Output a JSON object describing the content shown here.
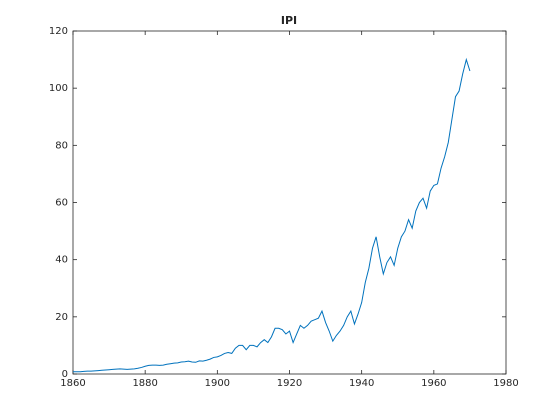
{
  "chart_data": {
    "type": "line",
    "title": "IPI",
    "x": [
      1860,
      1861,
      1862,
      1863,
      1864,
      1865,
      1866,
      1867,
      1868,
      1869,
      1870,
      1871,
      1872,
      1873,
      1874,
      1875,
      1876,
      1877,
      1878,
      1879,
      1880,
      1881,
      1882,
      1883,
      1884,
      1885,
      1886,
      1887,
      1888,
      1889,
      1890,
      1891,
      1892,
      1893,
      1894,
      1895,
      1896,
      1897,
      1898,
      1899,
      1900,
      1901,
      1902,
      1903,
      1904,
      1905,
      1906,
      1907,
      1908,
      1909,
      1910,
      1911,
      1912,
      1913,
      1914,
      1915,
      1916,
      1917,
      1918,
      1919,
      1920,
      1921,
      1922,
      1923,
      1924,
      1925,
      1926,
      1927,
      1928,
      1929,
      1930,
      1931,
      1932,
      1933,
      1934,
      1935,
      1936,
      1937,
      1938,
      1939,
      1940,
      1941,
      1942,
      1943,
      1944,
      1945,
      1946,
      1947,
      1948,
      1949,
      1950,
      1951,
      1952,
      1953,
      1954,
      1955,
      1956,
      1957,
      1958,
      1959,
      1960,
      1961,
      1962,
      1963,
      1964,
      1965,
      1966,
      1967,
      1968,
      1969,
      1970
    ],
    "series": [
      {
        "name": "IPI",
        "color": "#0072bd",
        "values": [
          0.8,
          0.8,
          0.8,
          0.9,
          1.0,
          1.0,
          1.1,
          1.2,
          1.3,
          1.4,
          1.5,
          1.6,
          1.7,
          1.8,
          1.7,
          1.6,
          1.7,
          1.8,
          2.0,
          2.3,
          2.7,
          3.0,
          3.1,
          3.1,
          3.0,
          3.1,
          3.4,
          3.6,
          3.8,
          3.9,
          4.2,
          4.3,
          4.5,
          4.2,
          4.1,
          4.6,
          4.5,
          4.8,
          5.2,
          5.8,
          6.0,
          6.5,
          7.2,
          7.5,
          7.2,
          9.0,
          10.0,
          10.0,
          8.5,
          10.0,
          10.0,
          9.5,
          11.0,
          12.0,
          11.0,
          13.0,
          16.0,
          16.0,
          15.5,
          14.0,
          15.0,
          11.0,
          14.0,
          17.0,
          16.0,
          17.0,
          18.5,
          19.0,
          19.5,
          22.0,
          18.0,
          15.0,
          11.5,
          13.5,
          15.0,
          17.0,
          20.0,
          22.0,
          17.5,
          21.0,
          25.0,
          32.0,
          37.0,
          44.0,
          48.0,
          41.0,
          35.0,
          39.0,
          41.0,
          38.0,
          44.0,
          48.0,
          50.0,
          54.0,
          51.0,
          57.0,
          60.0,
          61.5,
          58.0,
          64.0,
          66.0,
          66.5,
          72.0,
          76.0,
          81.0,
          89.0,
          97.0,
          99.0,
          105.0,
          110.0,
          106.0
        ]
      }
    ],
    "xlim": [
      1860,
      1980
    ],
    "xticks": [
      1860,
      1880,
      1900,
      1920,
      1940,
      1960,
      1980
    ],
    "ylim": [
      0,
      120
    ],
    "yticks": [
      0,
      20,
      40,
      60,
      80,
      100,
      120
    ]
  }
}
